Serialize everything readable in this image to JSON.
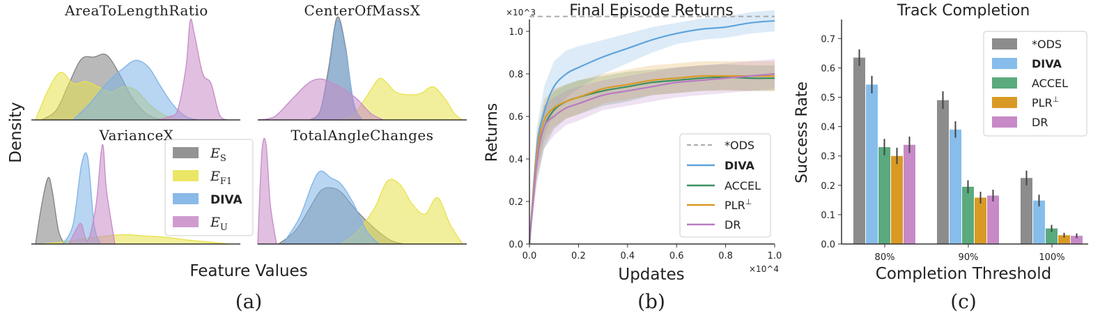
{
  "panel_a": {
    "ylabel": "Density",
    "xlabel": "Feature Values",
    "caption": "(a)",
    "subplots": [
      {
        "title": "AreaToLengthRatio"
      },
      {
        "title": "CenterOfMassX"
      },
      {
        "title": "VarianceX"
      },
      {
        "title": "TotalAngleChanges"
      }
    ],
    "legend": [
      {
        "base": "E",
        "sub": "S",
        "color": "#808080"
      },
      {
        "base": "E",
        "sub": "F1",
        "color": "#e8e24a"
      },
      {
        "label": "DIVA",
        "color": "#7db3e6"
      },
      {
        "base": "E",
        "sub": "U",
        "color": "#c78ac7"
      }
    ]
  },
  "panel_b": {
    "caption": "(b)",
    "scale_x": "×10^4",
    "scale_y": "×10^3",
    "legend_sup": "⊥"
  },
  "panel_c": {
    "caption": "(c)",
    "legend_sup": "⊥"
  },
  "chart_data": [
    {
      "type": "area",
      "title": "AreaToLengthRatio",
      "xlabel": "Feature Values",
      "ylabel": "Density",
      "series": [
        {
          "name": "E_S",
          "color": "#808080",
          "x": [
            0.05,
            0.12,
            0.18,
            0.24,
            0.3,
            0.36,
            0.42,
            0.48,
            0.54,
            0.6,
            0.66
          ],
          "y": [
            0.0,
            0.15,
            0.55,
            0.92,
            0.95,
            0.98,
            0.7,
            0.35,
            0.12,
            0.02,
            0.0
          ]
        },
        {
          "name": "E_F1",
          "color": "#e8e24a",
          "x": [
            0.02,
            0.08,
            0.14,
            0.2,
            0.26,
            0.32,
            0.38,
            0.44,
            0.5,
            0.56,
            0.62,
            0.68,
            0.74
          ],
          "y": [
            0.0,
            0.45,
            0.72,
            0.55,
            0.58,
            0.5,
            0.42,
            0.5,
            0.45,
            0.25,
            0.1,
            0.02,
            0.0
          ]
        },
        {
          "name": "DIVA",
          "color": "#7db3e6",
          "x": [
            0.2,
            0.28,
            0.36,
            0.44,
            0.5,
            0.56,
            0.62,
            0.68,
            0.74,
            0.8
          ],
          "y": [
            0.0,
            0.25,
            0.55,
            0.78,
            0.9,
            0.8,
            0.5,
            0.22,
            0.05,
            0.0
          ]
        },
        {
          "name": "E_U",
          "color": "#c78ac7",
          "x": [
            0.6,
            0.66,
            0.7,
            0.74,
            0.76,
            0.78,
            0.82,
            0.86,
            0.9,
            0.94
          ],
          "y": [
            0.0,
            0.05,
            0.15,
            0.8,
            1.5,
            1.3,
            0.7,
            0.55,
            0.08,
            0.0
          ]
        }
      ]
    },
    {
      "type": "area",
      "title": "CenterOfMassX",
      "xlabel": "Feature Values",
      "ylabel": "Density",
      "series": [
        {
          "name": "E_S",
          "color": "#808080",
          "x": [
            0.25,
            0.3,
            0.34,
            0.38,
            0.42,
            0.46,
            0.5
          ],
          "y": [
            0.0,
            0.15,
            0.8,
            1.55,
            1.1,
            0.2,
            0.0
          ]
        },
        {
          "name": "E_F1",
          "color": "#e8e24a",
          "x": [
            0.4,
            0.46,
            0.52,
            0.58,
            0.62,
            0.66,
            0.72,
            0.78,
            0.84,
            0.9,
            0.94,
            0.98
          ],
          "y": [
            0.0,
            0.08,
            0.35,
            0.62,
            0.55,
            0.42,
            0.38,
            0.4,
            0.5,
            0.3,
            0.1,
            0.0
          ]
        },
        {
          "name": "DIVA",
          "color": "#7db3e6",
          "x": [
            0.26,
            0.3,
            0.34,
            0.38,
            0.42,
            0.46,
            0.5
          ],
          "y": [
            0.0,
            0.12,
            0.7,
            1.5,
            1.05,
            0.25,
            0.0
          ]
        },
        {
          "name": "E_U",
          "color": "#c78ac7",
          "x": [
            0.0,
            0.08,
            0.16,
            0.24,
            0.3,
            0.36,
            0.42,
            0.48,
            0.54,
            0.6
          ],
          "y": [
            0.0,
            0.05,
            0.3,
            0.55,
            0.62,
            0.55,
            0.45,
            0.3,
            0.1,
            0.0
          ]
        }
      ]
    },
    {
      "type": "area",
      "title": "VarianceX",
      "xlabel": "Feature Values",
      "ylabel": "Density",
      "series": [
        {
          "name": "E_S",
          "color": "#808080",
          "x": [
            0.02,
            0.05,
            0.08,
            0.1,
            0.13,
            0.16
          ],
          "y": [
            0.0,
            0.6,
            1.0,
            0.8,
            0.2,
            0.0
          ]
        },
        {
          "name": "E_F1",
          "color": "#e8e24a",
          "x": [
            0.05,
            0.15,
            0.25,
            0.35,
            0.45,
            0.55,
            0.65,
            0.75,
            0.85,
            0.95
          ],
          "y": [
            0.0,
            0.03,
            0.08,
            0.12,
            0.14,
            0.12,
            0.1,
            0.06,
            0.03,
            0.0
          ]
        },
        {
          "name": "DIVA",
          "color": "#7db3e6",
          "x": [
            0.15,
            0.2,
            0.24,
            0.27,
            0.3,
            0.33
          ],
          "y": [
            0.0,
            0.3,
            1.2,
            1.3,
            0.3,
            0.0
          ]
        },
        {
          "name": "E_U",
          "color": "#c78ac7",
          "x": [
            0.18,
            0.22,
            0.24,
            0.27,
            0.31,
            0.34,
            0.36,
            0.4
          ],
          "y": [
            0.0,
            0.25,
            0.3,
            0.05,
            0.6,
            1.5,
            0.8,
            0.0
          ]
        }
      ]
    },
    {
      "type": "area",
      "title": "TotalAngleChanges",
      "xlabel": "Feature Values",
      "ylabel": "Density",
      "series": [
        {
          "name": "E_S",
          "color": "#808080",
          "x": [
            0.1,
            0.18,
            0.25,
            0.3,
            0.35,
            0.4,
            0.46,
            0.52,
            0.58,
            0.64,
            0.7
          ],
          "y": [
            0.0,
            0.2,
            0.55,
            0.8,
            0.85,
            0.78,
            0.55,
            0.35,
            0.18,
            0.05,
            0.0
          ]
        },
        {
          "name": "E_F1",
          "color": "#e8e24a",
          "x": [
            0.4,
            0.48,
            0.56,
            0.62,
            0.68,
            0.74,
            0.8,
            0.86,
            0.92,
            0.98
          ],
          "y": [
            0.0,
            0.2,
            0.55,
            0.95,
            0.9,
            0.6,
            0.45,
            0.7,
            0.3,
            0.0
          ]
        },
        {
          "name": "DIVA",
          "color": "#7db3e6",
          "x": [
            0.12,
            0.2,
            0.26,
            0.3,
            0.35,
            0.4,
            0.46,
            0.52,
            0.58
          ],
          "y": [
            0.0,
            0.4,
            0.9,
            1.1,
            1.0,
            0.9,
            0.6,
            0.2,
            0.0
          ]
        },
        {
          "name": "E_U",
          "color": "#c78ac7",
          "x": [
            0.0,
            0.02,
            0.04,
            0.06,
            0.09
          ],
          "y": [
            0.0,
            1.4,
            1.5,
            0.6,
            0.0
          ]
        }
      ]
    },
    {
      "type": "line",
      "title": "Final Episode Returns",
      "xlabel": "Updates",
      "ylabel": "Returns",
      "xlim": [
        0,
        1.0
      ],
      "ylim": [
        0,
        1.1
      ],
      "xticks": [
        "0.0",
        "0.2",
        "0.4",
        "0.6",
        "0.8",
        "1.0"
      ],
      "yticks": [
        "0.0",
        "0.2",
        "0.4",
        "0.6",
        "0.8",
        "1.0"
      ],
      "legend_position": "lower-right",
      "series": [
        {
          "name": "*ODS",
          "color": "#aaaaaa",
          "dashed": true,
          "x": [
            0,
            1.0
          ],
          "y": [
            1.07,
            1.07
          ]
        },
        {
          "name": "DIVA",
          "color": "#5fa3dc",
          "bold": true,
          "x": [
            0,
            0.03,
            0.06,
            0.1,
            0.15,
            0.2,
            0.3,
            0.4,
            0.5,
            0.6,
            0.7,
            0.8,
            0.9,
            1.0
          ],
          "y": [
            0,
            0.45,
            0.62,
            0.74,
            0.8,
            0.83,
            0.88,
            0.92,
            0.96,
            0.99,
            1.01,
            1.02,
            1.04,
            1.05
          ],
          "band": [
            0,
            0.1,
            0.12,
            0.12,
            0.11,
            0.1,
            0.08,
            0.07,
            0.06,
            0.05,
            0.05,
            0.05,
            0.05,
            0.05
          ]
        },
        {
          "name": "ACCEL",
          "color": "#3d8f5f",
          "x": [
            0,
            0.03,
            0.06,
            0.1,
            0.15,
            0.2,
            0.3,
            0.4,
            0.5,
            0.6,
            0.7,
            0.8,
            0.9,
            1.0
          ],
          "y": [
            0,
            0.4,
            0.55,
            0.63,
            0.67,
            0.69,
            0.72,
            0.74,
            0.76,
            0.77,
            0.78,
            0.785,
            0.78,
            0.78
          ],
          "band": [
            0,
            0.1,
            0.1,
            0.09,
            0.08,
            0.08,
            0.07,
            0.07,
            0.06,
            0.06,
            0.06,
            0.06,
            0.06,
            0.06
          ]
        },
        {
          "name": "PLR",
          "sup": "⊥",
          "color": "#d99a25",
          "x": [
            0,
            0.03,
            0.06,
            0.1,
            0.15,
            0.2,
            0.3,
            0.4,
            0.5,
            0.6,
            0.7,
            0.8,
            0.9,
            1.0
          ],
          "y": [
            0,
            0.42,
            0.58,
            0.64,
            0.67,
            0.69,
            0.73,
            0.75,
            0.77,
            0.78,
            0.79,
            0.79,
            0.79,
            0.79
          ],
          "band": [
            0,
            0.1,
            0.1,
            0.09,
            0.08,
            0.08,
            0.07,
            0.07,
            0.07,
            0.07,
            0.07,
            0.07,
            0.07,
            0.07
          ]
        },
        {
          "name": "DR",
          "color": "#b77bc2",
          "x": [
            0,
            0.03,
            0.06,
            0.1,
            0.15,
            0.2,
            0.3,
            0.4,
            0.5,
            0.6,
            0.7,
            0.8,
            0.9,
            1.0
          ],
          "y": [
            0,
            0.38,
            0.55,
            0.6,
            0.64,
            0.66,
            0.7,
            0.72,
            0.74,
            0.76,
            0.77,
            0.78,
            0.79,
            0.8
          ],
          "band": [
            0,
            0.1,
            0.1,
            0.09,
            0.08,
            0.08,
            0.07,
            0.07,
            0.07,
            0.07,
            0.07,
            0.07,
            0.07,
            0.07
          ]
        }
      ]
    },
    {
      "type": "bar",
      "title": "Track Completion",
      "xlabel": "Completion Threshold",
      "ylabel": "Success Rate",
      "ylim": [
        0,
        0.76
      ],
      "yticks": [
        "0.0",
        "0.1",
        "0.2",
        "0.3",
        "0.4",
        "0.5",
        "0.6",
        "0.7"
      ],
      "categories": [
        "80%",
        "90%",
        "100%"
      ],
      "legend_position": "top-right",
      "series": [
        {
          "name": "*ODS",
          "color": "#8c8c8c",
          "values": [
            0.635,
            0.49,
            0.225
          ],
          "err": [
            0.028,
            0.03,
            0.025
          ]
        },
        {
          "name": "DIVA",
          "color": "#86bdeb",
          "bold": true,
          "values": [
            0.543,
            0.39,
            0.148
          ],
          "err": [
            0.03,
            0.028,
            0.02
          ]
        },
        {
          "name": "ACCEL",
          "color": "#5aaa7e",
          "values": [
            0.33,
            0.195,
            0.053
          ],
          "err": [
            0.028,
            0.022,
            0.012
          ]
        },
        {
          "name": "PLR",
          "sup": "⊥",
          "color": "#d99a25",
          "values": [
            0.3,
            0.158,
            0.03
          ],
          "err": [
            0.028,
            0.02,
            0.008
          ]
        },
        {
          "name": "DR",
          "color": "#c78ac7",
          "values": [
            0.338,
            0.165,
            0.028
          ],
          "err": [
            0.028,
            0.02,
            0.008
          ]
        }
      ]
    }
  ]
}
